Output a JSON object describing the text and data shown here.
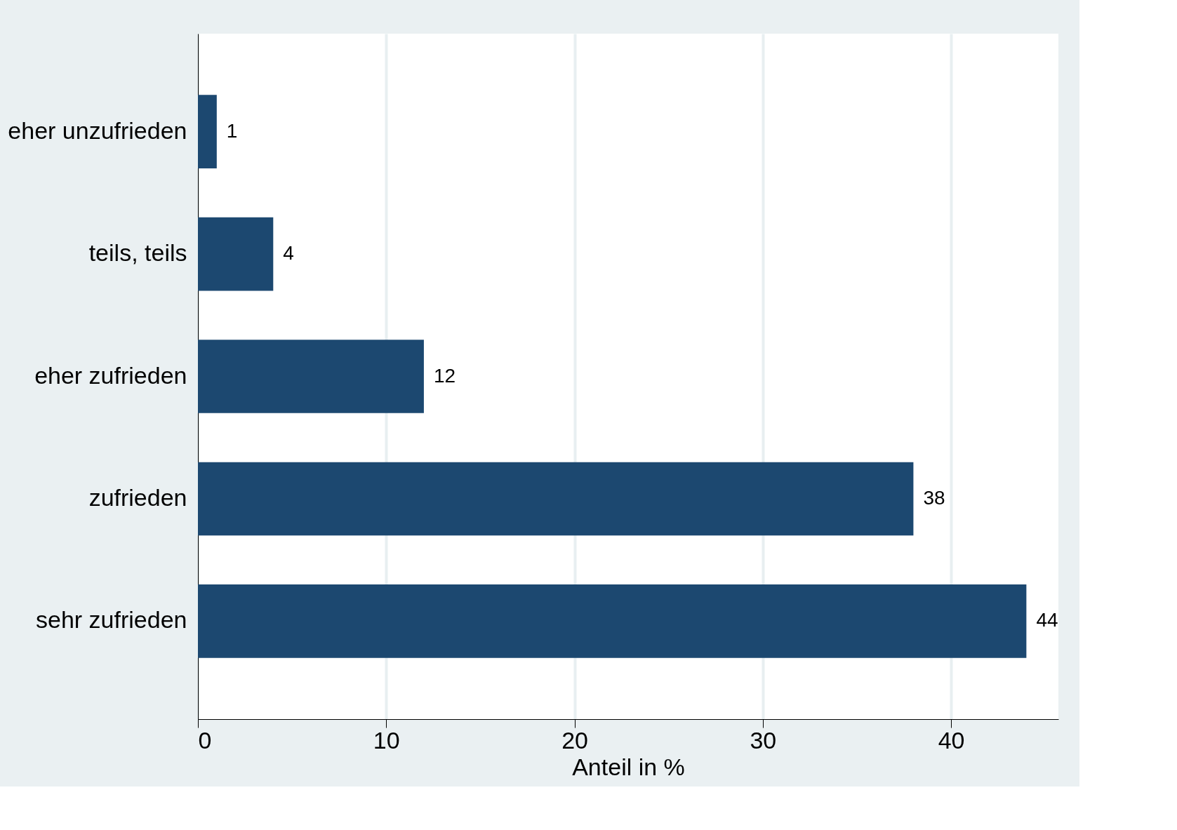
{
  "chart_data": {
    "type": "bar",
    "orientation": "horizontal",
    "xlabel": "Anteil in %",
    "categories": [
      "eher unzufrieden",
      "teils, teils",
      "eher zufrieden",
      "zufrieden",
      "sehr zufrieden"
    ],
    "values": [
      1,
      4,
      12,
      38,
      44
    ],
    "color": "#1c4870",
    "xlim": [
      0,
      45.7
    ],
    "xticks": [
      0,
      10,
      20,
      30,
      40
    ],
    "grid": "x",
    "data_labels": true
  }
}
